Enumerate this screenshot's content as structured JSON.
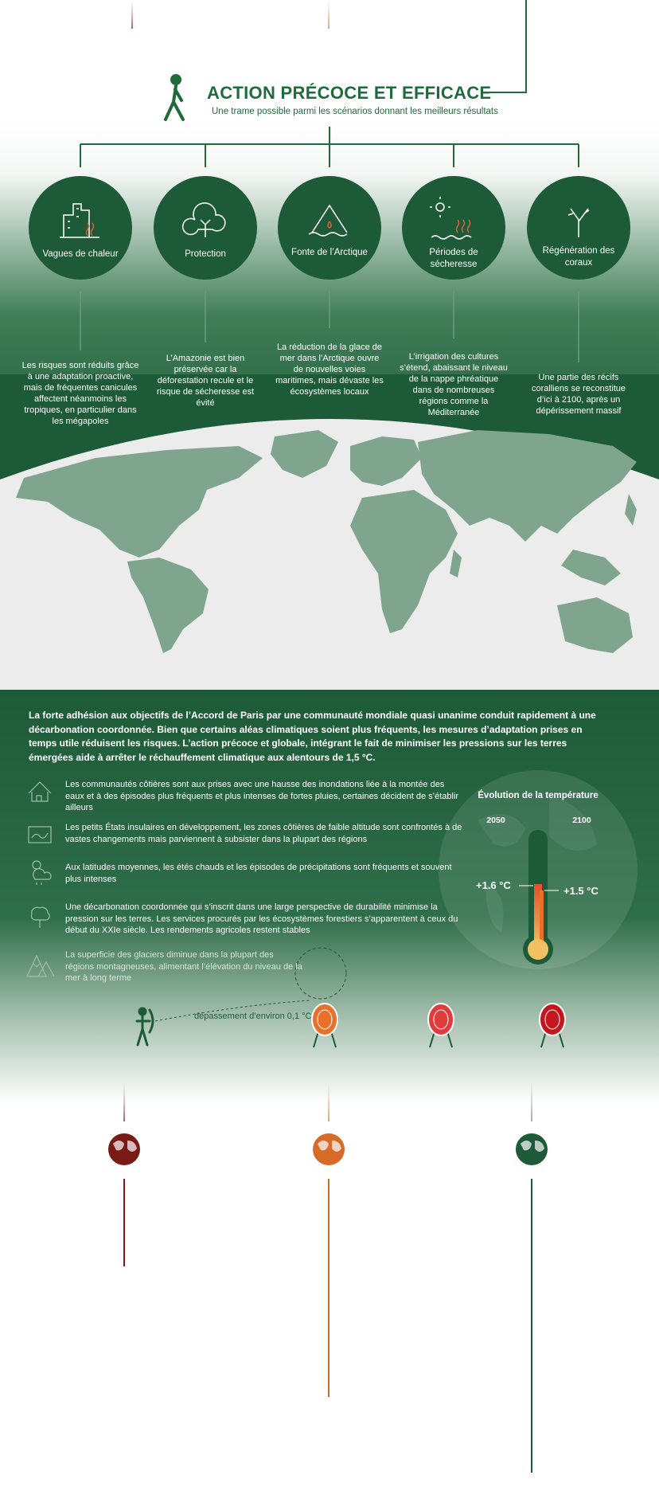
{
  "header": {
    "title": "ACTION PRÉCOCE ET EFFICACE",
    "subtitle": "Une trame possible parmi les scénarios donnant les meilleurs résultats"
  },
  "impacts": [
    {
      "label": "Vagues de chaleur",
      "text": "Les risques sont réduits grâce à une adaptation proactive, mais de fréquentes canicules affectent néanmoins les tropiques, en particulier dans les mégapoles"
    },
    {
      "label": "Protection",
      "text": "L’Amazonie est bien préservée car la déforestation recule et le risque de sécheresse est évité"
    },
    {
      "label": "Fonte de l’Arctique",
      "text": "La réduction de la glace de mer dans l’Arctique ouvre de nouvelles voies maritimes, mais dévaste les écosystèmes locaux"
    },
    {
      "label": "Périodes de sécheresse",
      "text": "L’irrigation des cultures s’étend, abaissant le niveau de la nappe phréatique dans de nombreuses régions comme la Méditerranée"
    },
    {
      "label": "Régénération des coraux",
      "text": "Une partie des récifs coralliens se reconstitue d’ici à 2100, après un dépérissement massif"
    }
  ],
  "summary": "La forte adhésion aux objectifs de l’Accord de Paris par une communauté mondiale quasi unanime conduit rapidement à une décarbonation coordonnée. Bien que certains aléas climatiques soient plus fréquents, les mesures d’adaptation prises en temps utile réduisent les risques. L’action précoce et globale, intégrant le fait de minimiser les pressions sur les terres émergées aide à arrêter le réchauffement climatique aux alentours de 1,5 °C.",
  "consequences": [
    "Les communautés côtières sont aux prises avec une hausse des inondations liée à la montée des eaux et à des épisodes plus fréquents et plus intenses de fortes pluies, certaines décident de s’établir ailleurs",
    "Les petits États insulaires en développement, les zones côtières de faible altitude sont confrontés à de vastes changements mais parviennent à subsister dans la plupart des régions",
    "Aux latitudes moyennes, les étés chauds et les épisodes de précipitations sont fréquents et souvent plus intenses",
    "Une décarbonation coordonnée qui s’inscrit dans une large perspective de durabilité minimise la pression sur les terres. Les services procurés par les écosystèmes forestiers s’apparentent à ceux du début du XXIe siècle. Les rendements agricoles restent stables",
    "La superficie des glaciers diminue dans la plupart des régions montagneuses, alimentant l’élévation du niveau de la mer à long terme"
  ],
  "temperature": {
    "title": "Évolution de la température",
    "years": [
      "2050",
      "2100"
    ],
    "values": [
      "+1.6 °C",
      "+1.5 °C"
    ]
  },
  "overshoot": "dépassement d’environ 0,1 °C"
}
